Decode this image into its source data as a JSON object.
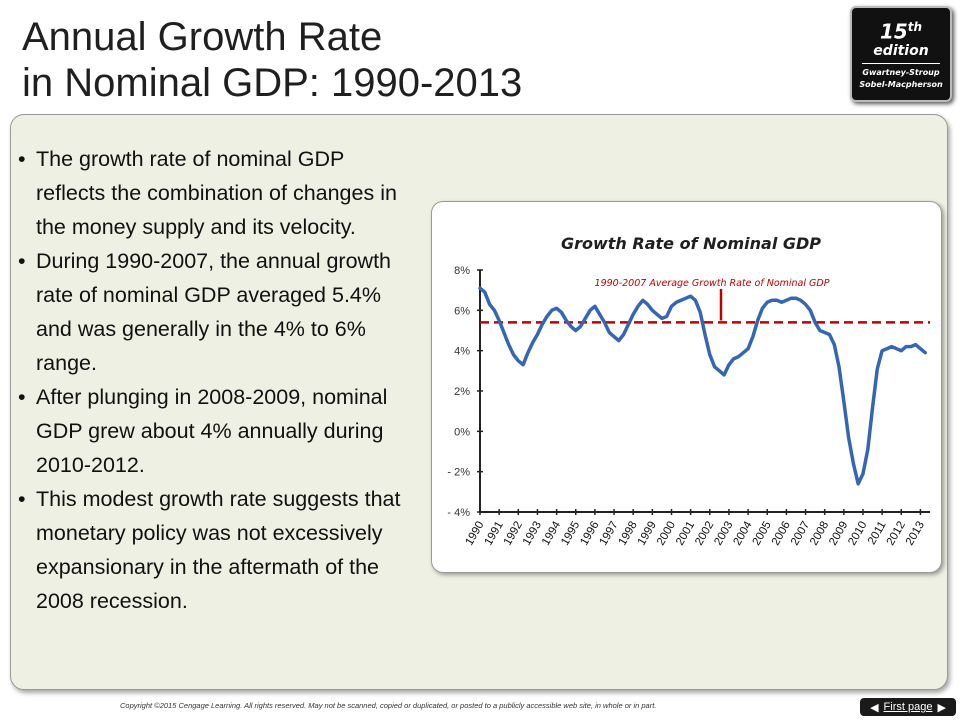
{
  "slide": {
    "title_line1": "Annual Growth Rate",
    "title_line2": "in Nominal GDP:  1990-2013"
  },
  "badge": {
    "edition_number": "15",
    "edition_suffix": "th",
    "edition_word": "edition",
    "authors_line1": "Gwartney-Stroup",
    "authors_line2": "Sobel-Macpherson"
  },
  "bullets": [
    "The growth rate of nominal GDP reflects the combination of changes in the money supply and its velocity.",
    "During 1990-2007, the annual growth rate of nominal GDP averaged 5.4% and was generally in the 4% to 6% range.",
    "After plunging in 2008-2009, nominal GDP grew about 4% annually during 2010-2012.",
    "This modest growth rate suggests that monetary policy was not excessively expansionary in the aftermath of the 2008 recession."
  ],
  "footer": {
    "copyright": "Copyright ©2015 Cengage Learning. All rights reserved. May not be scanned, copied or duplicated, or posted to a publicly accessible web site, in whole or in part.",
    "first_page_label": "First page"
  },
  "chart_data": {
    "type": "line",
    "title": "Growth Rate of Nominal GDP",
    "xlabel": "",
    "ylabel": "",
    "x_tick_labels": [
      "1990",
      "1991",
      "1992",
      "1993",
      "1994",
      "1995",
      "1996",
      "1997",
      "1998",
      "1999",
      "2000",
      "2001",
      "2002",
      "2003",
      "2004",
      "2005",
      "2006",
      "2007",
      "2008",
      "2009",
      "2010",
      "2011",
      "2012",
      "2013"
    ],
    "y_tick_values": [
      8,
      6,
      4,
      2,
      0,
      -2,
      -4
    ],
    "y_tick_labels": [
      "8%",
      "6%",
      "4%",
      "2%",
      "0%",
      "- 2%",
      "- 4%"
    ],
    "ylim": [
      -4,
      8
    ],
    "xlim": [
      1990,
      2013.5
    ],
    "grid": false,
    "legend": "none",
    "series_color": "#3566b4",
    "reference_color": "#c00000",
    "series": [
      {
        "x": [
          1990,
          1990.25,
          1990.5,
          1990.75,
          1991,
          1991.25,
          1991.5,
          1991.75,
          1992,
          1992.25,
          1992.5,
          1992.75,
          1993,
          1993.25,
          1993.5,
          1993.75,
          1994,
          1994.25,
          1994.5,
          1994.75,
          1995,
          1995.25,
          1995.5,
          1995.75,
          1996,
          1996.25,
          1996.5,
          1996.75,
          1997,
          1997.25,
          1997.5,
          1997.75,
          1998,
          1998.25,
          1998.5,
          1998.75,
          1999,
          1999.25,
          1999.5,
          1999.75,
          2000,
          2000.25,
          2000.5,
          2000.75,
          2001,
          2001.25,
          2001.5,
          2001.75,
          2002,
          2002.25,
          2002.5,
          2002.75,
          2003,
          2003.25,
          2003.5,
          2003.75,
          2004,
          2004.25,
          2004.5,
          2004.75,
          2005,
          2005.25,
          2005.5,
          2005.75,
          2006,
          2006.25,
          2006.5,
          2006.75,
          2007,
          2007.25,
          2007.5,
          2007.75,
          2008,
          2008.25,
          2008.5,
          2008.75,
          2009,
          2009.25,
          2009.5,
          2009.75,
          2010,
          2010.25,
          2010.5,
          2010.75,
          2011,
          2011.25,
          2011.5,
          2011.75,
          2012,
          2012.25,
          2012.5,
          2012.75,
          2013,
          2013.25
        ],
        "y": [
          7.1,
          6.9,
          6.3,
          6.0,
          5.5,
          4.9,
          4.3,
          3.8,
          3.5,
          3.3,
          3.9,
          4.4,
          4.8,
          5.3,
          5.7,
          6.0,
          6.1,
          5.9,
          5.5,
          5.2,
          5.0,
          5.2,
          5.6,
          6.0,
          6.2,
          5.8,
          5.4,
          4.9,
          4.7,
          4.5,
          4.8,
          5.3,
          5.8,
          6.2,
          6.5,
          6.3,
          6.0,
          5.8,
          5.6,
          5.7,
          6.2,
          6.4,
          6.5,
          6.6,
          6.7,
          6.5,
          5.9,
          4.8,
          3.8,
          3.2,
          3.0,
          2.8,
          3.3,
          3.6,
          3.7,
          3.9,
          4.1,
          4.7,
          5.5,
          6.1,
          6.4,
          6.5,
          6.5,
          6.4,
          6.5,
          6.6,
          6.6,
          6.5,
          6.3,
          6.0,
          5.4,
          5.0,
          4.9,
          4.8,
          4.3,
          3.2,
          1.5,
          -0.3,
          -1.6,
          -2.6,
          -2.1,
          -0.9,
          1.2,
          3.1,
          4.0,
          4.1,
          4.2,
          4.1,
          4.0,
          4.2,
          4.2,
          4.3,
          4.1,
          3.9
        ]
      }
    ],
    "reference_line": {
      "label": "1990-2007 Average Growth Rate of Nominal GDP",
      "y": 5.4
    }
  }
}
